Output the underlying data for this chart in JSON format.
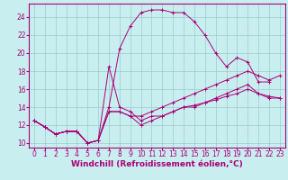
{
  "xlabel": "Windchill (Refroidissement éolien,°C)",
  "bg_color": "#c8eef0",
  "line_color": "#aa0077",
  "grid_color": "#99cccc",
  "xlim": [
    -0.5,
    23.5
  ],
  "ylim": [
    9.5,
    25.5
  ],
  "xticks": [
    0,
    1,
    2,
    3,
    4,
    5,
    6,
    7,
    8,
    9,
    10,
    11,
    12,
    13,
    14,
    15,
    16,
    17,
    18,
    19,
    20,
    21,
    22,
    23
  ],
  "yticks": [
    10,
    12,
    14,
    16,
    18,
    20,
    22,
    24
  ],
  "series": [
    [
      12.5,
      11.8,
      11.0,
      11.3,
      11.3,
      10.0,
      10.3,
      18.5,
      14.0,
      13.5,
      12.5,
      13.0,
      13.0,
      13.5,
      14.0,
      14.2,
      14.5,
      14.8,
      15.2,
      15.5,
      16.0,
      15.5,
      15.0,
      15.0
    ],
    [
      12.5,
      11.8,
      11.0,
      11.3,
      11.3,
      10.0,
      10.3,
      14.0,
      20.5,
      23.0,
      24.5,
      24.8,
      24.8,
      24.5,
      24.5,
      23.5,
      22.0,
      20.0,
      18.5,
      19.5,
      19.0,
      16.8,
      16.8,
      null
    ],
    [
      12.5,
      11.8,
      11.0,
      11.3,
      11.3,
      10.0,
      10.3,
      13.5,
      13.5,
      13.0,
      12.0,
      12.5,
      13.0,
      13.5,
      14.0,
      14.0,
      14.5,
      15.0,
      15.5,
      16.0,
      16.5,
      15.5,
      15.2,
      15.0
    ],
    [
      12.5,
      11.8,
      11.0,
      11.3,
      11.3,
      10.0,
      10.3,
      13.5,
      13.5,
      13.0,
      13.0,
      13.5,
      14.0,
      14.5,
      15.0,
      15.5,
      16.0,
      16.5,
      17.0,
      17.5,
      18.0,
      17.5,
      17.0,
      17.5
    ]
  ],
  "xlabel_fontsize": 6.5,
  "tick_fontsize": 5.5
}
